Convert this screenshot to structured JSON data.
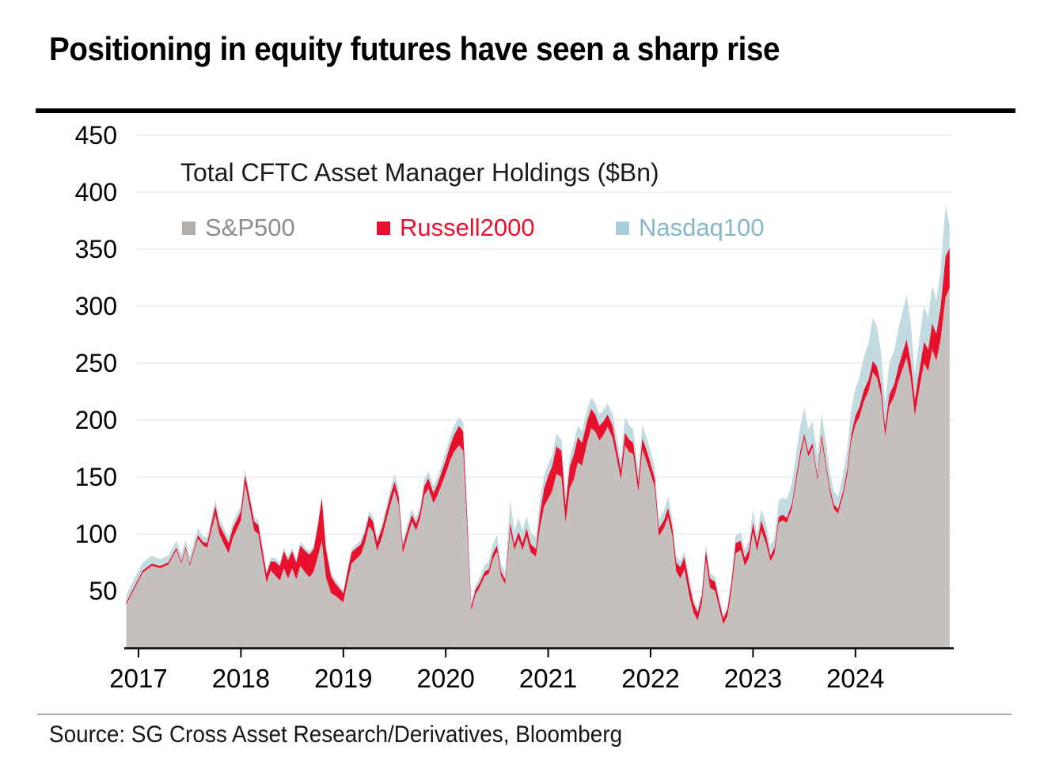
{
  "page": {
    "title": "Positioning in equity futures have seen a sharp rise",
    "source": "Source: SG Cross Asset Research/Derivatives, Bloomberg"
  },
  "chart_data": {
    "type": "area",
    "stacked": true,
    "title": "Total CFTC Asset Manager Holdings ($Bn)",
    "xlabel": "",
    "ylabel": "",
    "ylim": [
      0,
      450
    ],
    "grid": "horizontal",
    "legend_position": "top-left-inside",
    "yticks": [
      50,
      100,
      150,
      200,
      250,
      300,
      350,
      400,
      450
    ],
    "xticks": [
      2017,
      2018,
      2019,
      2020,
      2021,
      2022,
      2023,
      2024
    ],
    "axis_color": "#000000",
    "gridline_color": "#ebebeb",
    "x": [
      2016.88,
      2016.96,
      2017.04,
      2017.13,
      2017.21,
      2017.29,
      2017.37,
      2017.42,
      2017.46,
      2017.5,
      2017.58,
      2017.63,
      2017.67,
      2017.75,
      2017.79,
      2017.83,
      2017.88,
      2017.92,
      2018,
      2018.04,
      2018.08,
      2018.13,
      2018.17,
      2018.25,
      2018.29,
      2018.33,
      2018.38,
      2018.42,
      2018.46,
      2018.5,
      2018.54,
      2018.58,
      2018.63,
      2018.67,
      2018.71,
      2018.75,
      2018.79,
      2018.83,
      2018.88,
      2018.92,
      2019,
      2019.04,
      2019.08,
      2019.17,
      2019.21,
      2019.25,
      2019.29,
      2019.33,
      2019.38,
      2019.42,
      2019.46,
      2019.5,
      2019.54,
      2019.58,
      2019.63,
      2019.67,
      2019.71,
      2019.75,
      2019.79,
      2019.83,
      2019.88,
      2019.92,
      2020,
      2020.04,
      2020.08,
      2020.13,
      2020.17,
      2020.21,
      2020.25,
      2020.29,
      2020.33,
      2020.38,
      2020.42,
      2020.46,
      2020.5,
      2020.54,
      2020.58,
      2020.63,
      2020.67,
      2020.71,
      2020.75,
      2020.79,
      2020.83,
      2020.88,
      2020.92,
      2020.96,
      2021,
      2021.04,
      2021.08,
      2021.13,
      2021.17,
      2021.21,
      2021.25,
      2021.29,
      2021.33,
      2021.38,
      2021.42,
      2021.46,
      2021.5,
      2021.54,
      2021.58,
      2021.63,
      2021.67,
      2021.71,
      2021.75,
      2021.79,
      2021.83,
      2021.88,
      2021.92,
      2021.96,
      2022,
      2022.04,
      2022.08,
      2022.13,
      2022.17,
      2022.21,
      2022.25,
      2022.29,
      2022.33,
      2022.38,
      2022.42,
      2022.46,
      2022.5,
      2022.54,
      2022.58,
      2022.63,
      2022.67,
      2022.71,
      2022.75,
      2022.79,
      2022.83,
      2022.88,
      2022.92,
      2022.96,
      2023,
      2023.04,
      2023.08,
      2023.13,
      2023.17,
      2023.21,
      2023.25,
      2023.29,
      2023.33,
      2023.38,
      2023.42,
      2023.46,
      2023.5,
      2023.54,
      2023.58,
      2023.63,
      2023.67,
      2023.71,
      2023.75,
      2023.79,
      2023.83,
      2023.88,
      2023.92,
      2023.96,
      2024,
      2024.04,
      2024.08,
      2024.13,
      2024.17,
      2024.21,
      2024.25,
      2024.29,
      2024.33,
      2024.38,
      2024.42,
      2024.46,
      2024.5,
      2024.54,
      2024.58,
      2024.63,
      2024.67,
      2024.71,
      2024.75,
      2024.79,
      2024.83,
      2024.88,
      2024.92
    ],
    "series": [
      {
        "name": "S&P500",
        "area_color": "#c3c0be",
        "swatch_color": "#b1aeac",
        "label_color": "#8f8d8b",
        "values": [
          38,
          52,
          66,
          72,
          70,
          73,
          86,
          74,
          87,
          72,
          96,
          90,
          88,
          117,
          100,
          92,
          83,
          96,
          112,
          144,
          126,
          103,
          100,
          57,
          68,
          64,
          59,
          70,
          61,
          70,
          60,
          72,
          66,
          62,
          67,
          80,
          94,
          62,
          48,
          46,
          40,
          58,
          74,
          82,
          92,
          107,
          102,
          85,
          98,
          112,
          126,
          138,
          126,
          83,
          99,
          111,
          103,
          114,
          134,
          140,
          127,
          134,
          153,
          164,
          172,
          178,
          173,
          103,
          33,
          47,
          53,
          63,
          65,
          78,
          85,
          63,
          56,
          104,
          86,
          96,
          86,
          98,
          84,
          80,
          106,
          124,
          131,
          138,
          153,
          150,
          110,
          140,
          148,
          163,
          160,
          180,
          193,
          190,
          182,
          187,
          194,
          184,
          166,
          148,
          178,
          172,
          170,
          137,
          174,
          164,
          153,
          141,
          98,
          105,
          115,
          99,
          67,
          61,
          69,
          45,
          31,
          24,
          39,
          77,
          53,
          50,
          35,
          21,
          28,
          51,
          83,
          86,
          72,
          79,
          102,
          85,
          103,
          91,
          76,
          83,
          110,
          112,
          110,
          123,
          145,
          167,
          184,
          168,
          176,
          147,
          183,
          160,
          137,
          122,
          118,
          134,
          152,
          182,
          196,
          203,
          216,
          226,
          242,
          237,
          222,
          186,
          212,
          221,
          234,
          245,
          255,
          236,
          204,
          231,
          250,
          243,
          262,
          252,
          270,
          308,
          316
        ]
      },
      {
        "name": "Russell2000",
        "area_color": "#e8112d",
        "swatch_color": "#e8112d",
        "label_color": "#e8112d",
        "values": [
          2,
          2,
          2,
          2,
          2,
          2,
          2,
          2,
          2,
          2,
          3,
          3,
          4,
          8,
          8,
          9,
          9,
          9,
          8,
          8,
          8,
          8,
          8,
          8,
          8,
          12,
          13,
          15,
          16,
          15,
          15,
          18,
          19,
          20,
          20,
          27,
          38,
          25,
          15,
          11,
          8,
          9,
          10,
          9,
          9,
          9,
          9,
          8,
          8,
          8,
          8,
          8,
          7,
          6,
          6,
          6,
          6,
          6,
          8,
          9,
          9,
          10,
          12,
          13,
          15,
          17,
          17,
          11,
          4,
          4,
          4,
          4,
          4,
          5,
          5,
          4,
          4,
          6,
          5,
          6,
          6,
          7,
          7,
          7,
          12,
          16,
          20,
          22,
          24,
          23,
          15,
          19,
          22,
          22,
          20,
          19,
          17,
          15,
          13,
          12,
          11,
          11,
          9,
          8,
          11,
          11,
          10,
          9,
          10,
          10,
          9,
          8,
          7,
          7,
          8,
          8,
          8,
          10,
          11,
          10,
          8,
          7,
          7,
          9,
          8,
          8,
          6,
          5,
          6,
          7,
          9,
          8,
          7,
          7,
          8,
          7,
          9,
          7,
          5,
          5,
          5,
          5,
          4,
          4,
          5,
          5,
          4,
          4,
          4,
          4,
          5,
          4,
          4,
          4,
          4,
          4,
          5,
          6,
          8,
          9,
          10,
          10,
          10,
          10,
          9,
          8,
          10,
          11,
          13,
          14,
          16,
          15,
          14,
          16,
          19,
          19,
          23,
          24,
          28,
          36,
          35
        ]
      },
      {
        "name": "Nasdaq100",
        "area_color": "#c2dbe0",
        "swatch_color": "#a9cfd8",
        "label_color": "#85b7c4",
        "values": [
          6,
          7,
          7,
          7,
          6,
          6,
          6,
          6,
          6,
          6,
          6,
          5,
          5,
          5,
          5,
          5,
          5,
          5,
          5,
          5,
          4,
          4,
          4,
          3,
          3,
          3,
          3,
          3,
          3,
          3,
          3,
          3,
          3,
          3,
          3,
          3,
          3,
          3,
          3,
          3,
          3,
          3,
          3,
          4,
          4,
          4,
          4,
          4,
          4,
          5,
          6,
          7,
          7,
          6,
          5,
          5,
          5,
          5,
          6,
          6,
          6,
          6,
          7,
          7,
          8,
          8,
          8,
          6,
          3,
          4,
          5,
          6,
          7,
          8,
          9,
          7,
          6,
          20,
          11,
          12,
          11,
          11,
          10,
          10,
          12,
          11,
          10,
          10,
          11,
          10,
          8,
          9,
          10,
          10,
          10,
          10,
          10,
          10,
          10,
          10,
          10,
          10,
          10,
          10,
          14,
          13,
          12,
          10,
          12,
          11,
          11,
          10,
          8,
          8,
          10,
          8,
          6,
          5,
          5,
          5,
          4,
          4,
          4,
          5,
          5,
          4,
          4,
          3,
          3,
          4,
          7,
          7,
          7,
          8,
          11,
          8,
          10,
          10,
          9,
          9,
          14,
          15,
          16,
          18,
          20,
          22,
          23,
          20,
          19,
          17,
          18,
          18,
          13,
          12,
          11,
          14,
          18,
          22,
          24,
          26,
          29,
          32,
          38,
          35,
          29,
          21,
          28,
          30,
          33,
          36,
          39,
          34,
          22,
          28,
          31,
          28,
          33,
          29,
          32,
          44,
          20
        ]
      }
    ]
  }
}
